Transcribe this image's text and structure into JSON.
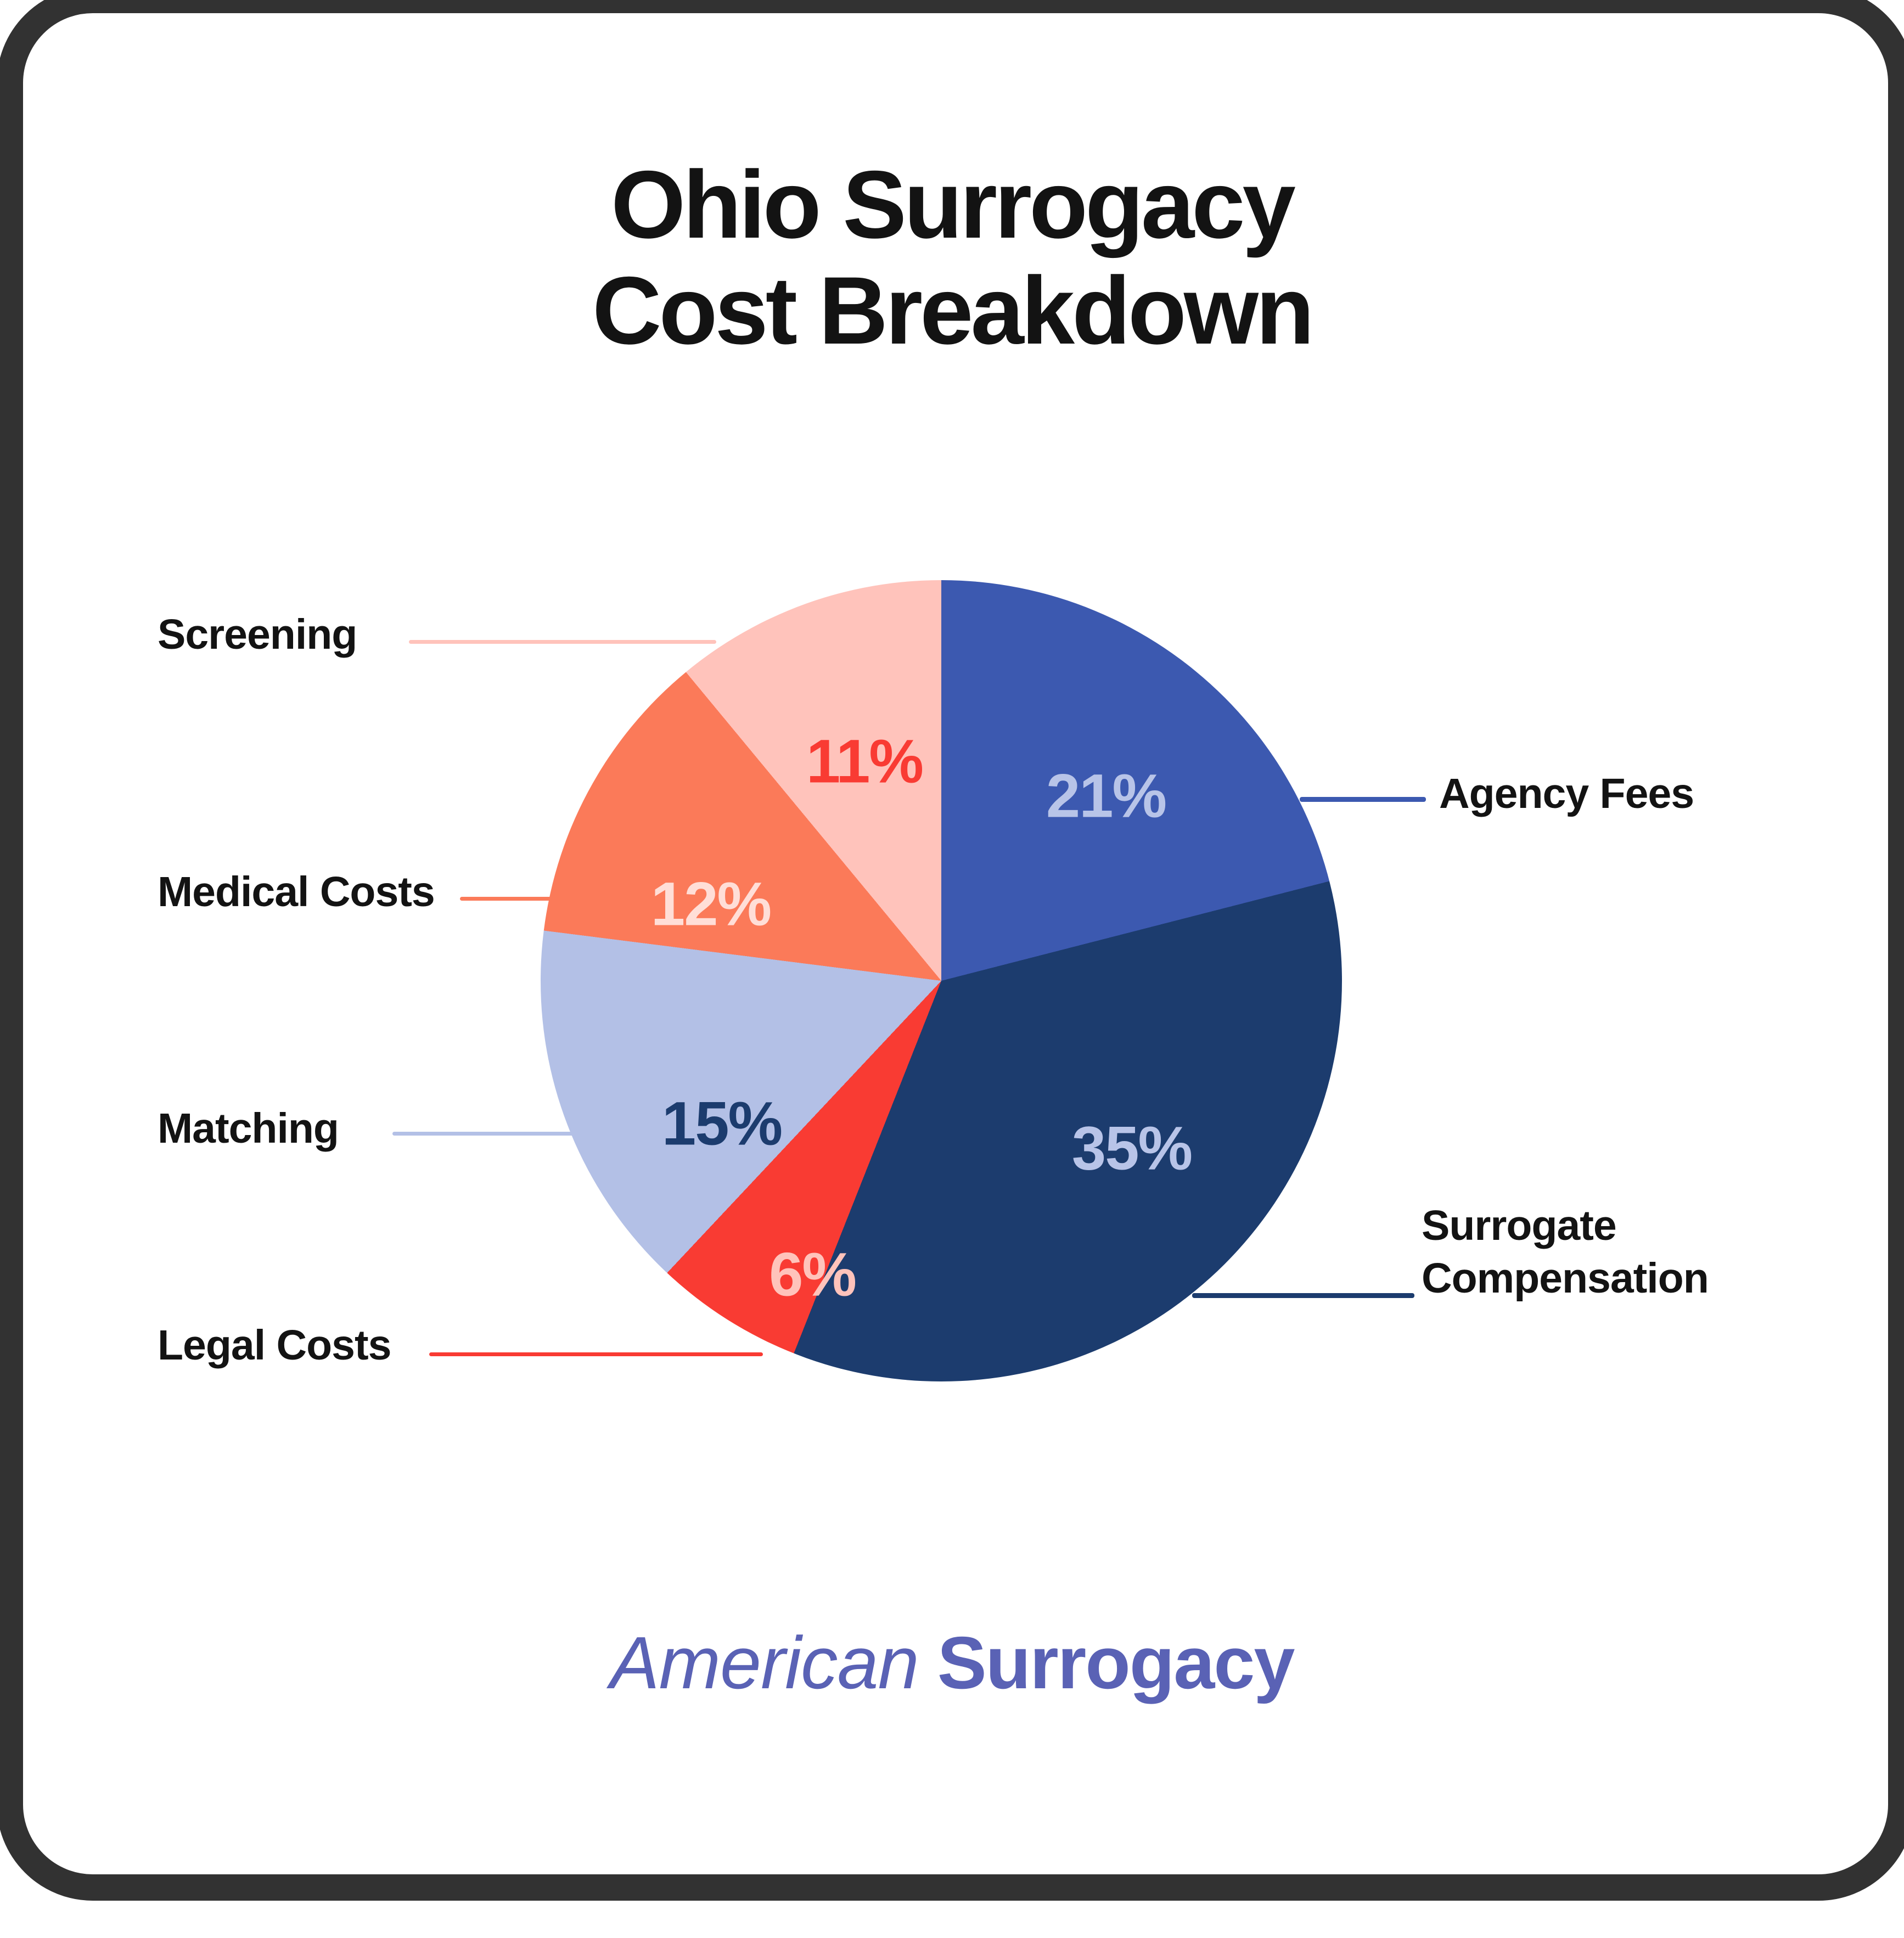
{
  "title": {
    "line1": "Ohio Surrogacy",
    "line2": "Cost Breakdown"
  },
  "chart_data": {
    "type": "pie",
    "title": "Ohio Surrogacy Cost Breakdown",
    "direction": "clockwise",
    "start_angle_deg": 0,
    "legend_position": "callout-labels",
    "slices": [
      {
        "label": "Agency Fees",
        "value_pct": 21,
        "display": "21%",
        "color": "#3c59b0",
        "value_label_color": "#b8c4e8"
      },
      {
        "label": "Surrogate Compensation",
        "value_pct": 35,
        "display": "35%",
        "color": "#1c3c6e",
        "value_label_color": "#b8c4e8"
      },
      {
        "label": "Legal Costs",
        "value_pct": 6,
        "display": "6%",
        "color": "#f93b33",
        "value_label_color": "#ffc3bb"
      },
      {
        "label": "Matching",
        "value_pct": 15,
        "display": "15%",
        "color": "#b3c0e6",
        "value_label_color": "#1c3c6e"
      },
      {
        "label": "Medical Costs",
        "value_pct": 12,
        "display": "12%",
        "color": "#fb7a59",
        "value_label_color": "#ffded7"
      },
      {
        "label": "Screening",
        "value_pct": 11,
        "display": "11%",
        "color": "#ffc3bb",
        "value_label_color": "#f93b33"
      }
    ]
  },
  "branding": {
    "word1": "American",
    "word2": "Surrogacy",
    "color": "#5a62b5"
  }
}
